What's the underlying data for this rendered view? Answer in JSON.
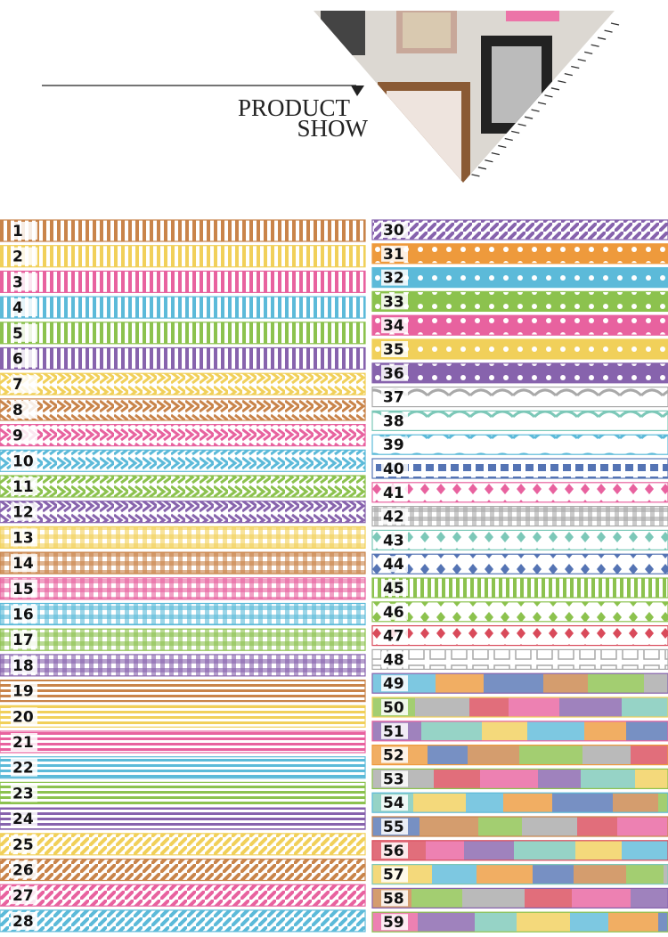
{
  "header": {
    "line1": "PRODUCT",
    "line2": "SHOW"
  },
  "tapes": [
    "1",
    "2",
    "3",
    "4",
    "5",
    "6",
    "7",
    "8",
    "9",
    "10",
    "11",
    "12",
    "13",
    "14",
    "15",
    "16",
    "17",
    "18",
    "19",
    "20",
    "21",
    "22",
    "23",
    "24",
    "25",
    "26",
    "27",
    "28",
    "30",
    "31",
    "32",
    "33",
    "34",
    "35",
    "36",
    "37",
    "38",
    "39",
    "40",
    "41",
    "42",
    "43",
    "44",
    "45",
    "46",
    "47",
    "48",
    "49",
    "50",
    "51",
    "52",
    "53",
    "54",
    "55",
    "56",
    "57",
    "58",
    "59"
  ]
}
